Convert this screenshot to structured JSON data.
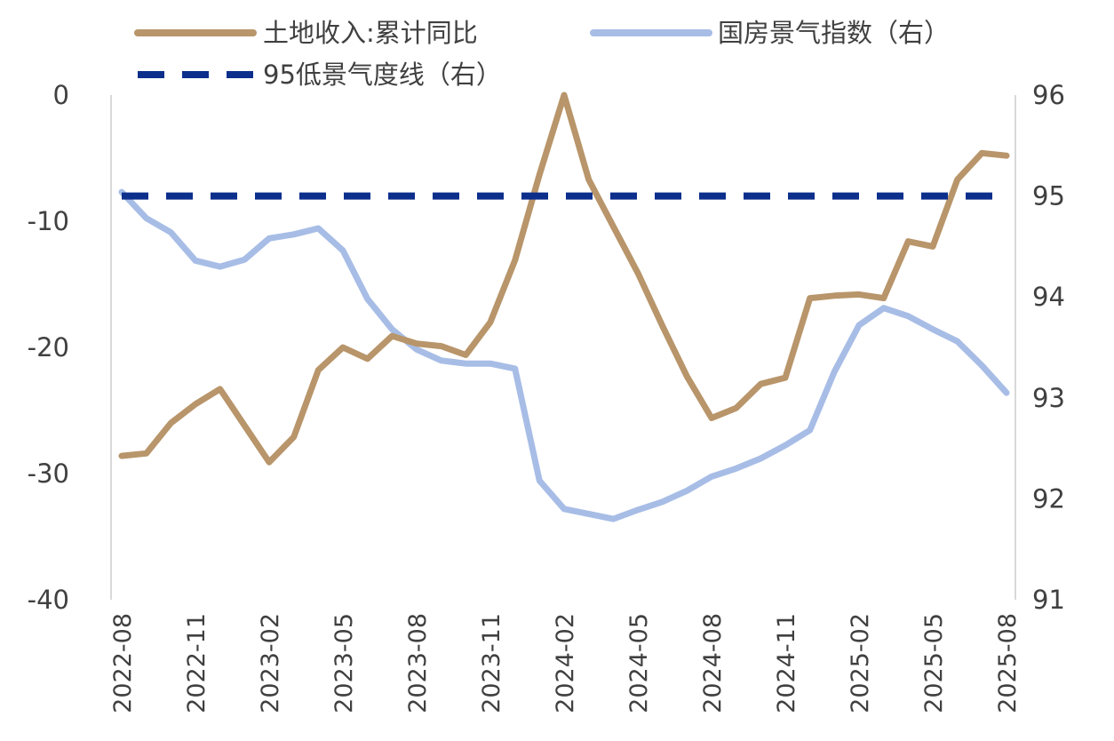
{
  "chart_data": {
    "type": "line",
    "title": "",
    "xlabel": "",
    "ylabel": "",
    "ylabel_right": "",
    "ylim_left": [
      -40,
      0
    ],
    "ylim_right": [
      91,
      96
    ],
    "yticks_left": [
      "0",
      "-10",
      "-20",
      "-30",
      "-40"
    ],
    "yticks_right": [
      "96",
      "95",
      "94",
      "93",
      "92",
      "91"
    ],
    "grid": false,
    "legend_position": "top",
    "x": [
      "2022-08",
      "2022-09",
      "2022-10",
      "2022-11",
      "2022-12",
      "2023-01",
      "2023-02",
      "2023-03",
      "2023-04",
      "2023-05",
      "2023-06",
      "2023-07",
      "2023-08",
      "2023-09",
      "2023-10",
      "2023-11",
      "2023-12",
      "2024-01",
      "2024-02",
      "2024-03",
      "2024-04",
      "2024-05",
      "2024-06",
      "2024-07",
      "2024-08",
      "2024-09",
      "2024-10",
      "2024-11",
      "2024-12",
      "2025-01",
      "2025-02",
      "2025-03",
      "2025-04",
      "2025-05",
      "2025-06",
      "2025-07",
      "2025-08"
    ],
    "xtick_labels": [
      "2022-08",
      "2022-11",
      "2023-02",
      "2023-05",
      "2023-08",
      "2023-11",
      "2024-02",
      "2024-05",
      "2024-08",
      "2024-11",
      "2025-02",
      "2025-05",
      "2025-08"
    ],
    "series": [
      {
        "name": "土地收入:累计同比",
        "axis": "left",
        "color": "#b8956a",
        "style": "solid",
        "values": [
          -28.6,
          -28.4,
          -26.0,
          -24.5,
          -23.3,
          -26.2,
          -29.1,
          -27.1,
          -21.8,
          -20.0,
          -20.9,
          -19.1,
          -19.7,
          -19.9,
          -20.6,
          -18.0,
          -13.1,
          -6.3,
          0.0,
          -6.7,
          -10.4,
          -14.1,
          -18.3,
          -22.3,
          -25.6,
          -24.8,
          -22.9,
          -22.4,
          -16.1,
          -15.9,
          -15.8,
          -16.1,
          -11.6,
          -12.0,
          -6.7,
          -4.6,
          -4.8
        ]
      },
      {
        "name": "国房景气指数（右）",
        "axis": "right",
        "color": "#a7bde6",
        "style": "solid",
        "values": [
          95.04,
          94.78,
          94.64,
          94.36,
          94.3,
          94.37,
          94.58,
          94.62,
          94.68,
          94.46,
          93.98,
          93.68,
          93.48,
          93.37,
          93.34,
          93.34,
          93.29,
          92.18,
          91.9,
          91.85,
          91.8,
          91.89,
          91.97,
          92.08,
          92.22,
          92.3,
          92.4,
          92.53,
          92.68,
          93.26,
          93.72,
          93.89,
          93.81,
          93.68,
          93.56,
          93.32,
          93.05
        ]
      },
      {
        "name": "95低景气度线（右）",
        "axis": "right",
        "color": "#0c2f8c",
        "style": "dashed",
        "values": [
          95,
          95,
          95,
          95,
          95,
          95,
          95,
          95,
          95,
          95,
          95,
          95,
          95,
          95,
          95,
          95,
          95,
          95,
          95,
          95,
          95,
          95,
          95,
          95,
          95,
          95,
          95,
          95,
          95,
          95,
          95,
          95,
          95,
          95,
          95,
          95,
          95
        ]
      }
    ]
  }
}
